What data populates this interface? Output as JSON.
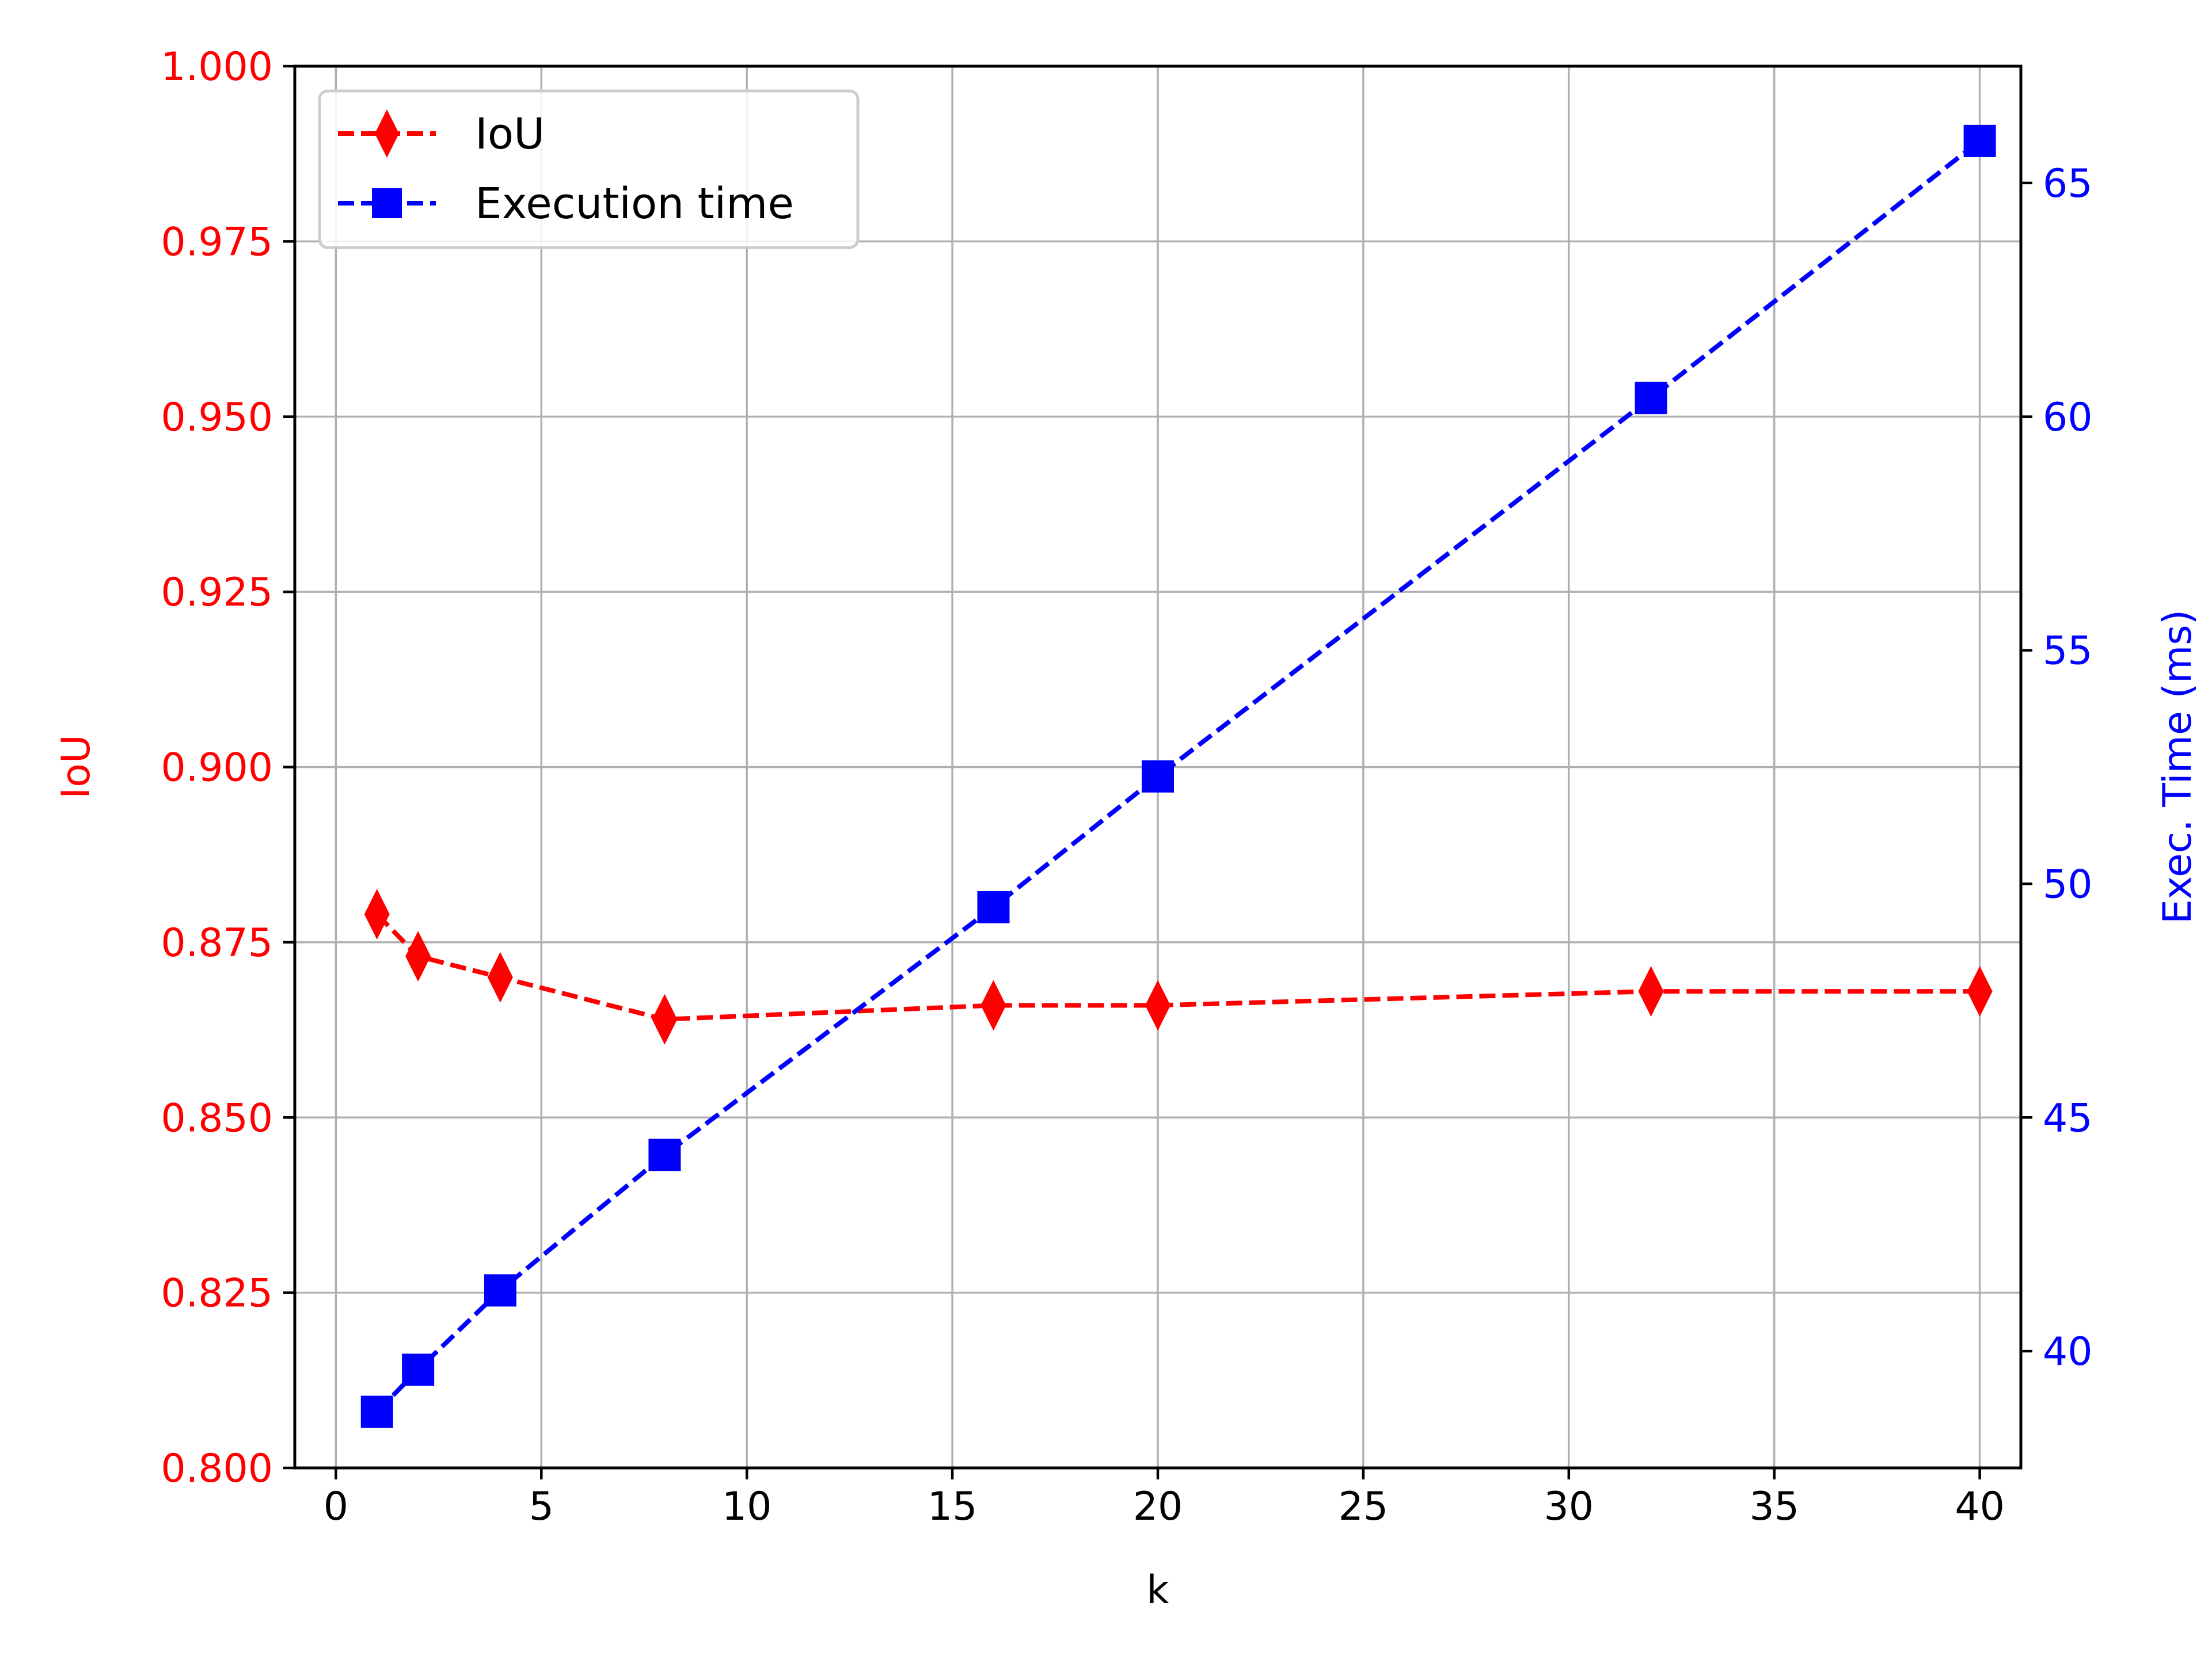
{
  "chart_data": {
    "type": "line",
    "x": [
      1,
      2,
      4,
      8,
      16,
      20,
      32,
      40
    ],
    "xlabel": "k",
    "xlim": [
      -1,
      41
    ],
    "xticks": [
      0,
      5,
      10,
      15,
      20,
      25,
      30,
      35,
      40
    ],
    "grid": true,
    "legend_position": "top-left",
    "series": [
      {
        "name": "IoU",
        "axis": "left",
        "color": "#ff0000",
        "marker": "diamond",
        "linestyle": "dashed",
        "values": [
          0.879,
          0.873,
          0.87,
          0.864,
          0.866,
          0.866,
          0.868,
          0.868
        ]
      },
      {
        "name": "Execution time",
        "axis": "right",
        "color": "#0000ff",
        "marker": "square",
        "linestyle": "dashed",
        "values": [
          38.7,
          39.6,
          41.3,
          44.2,
          49.5,
          52.3,
          60.4,
          65.9
        ]
      }
    ],
    "y_left": {
      "label": "IoU",
      "color": "#ff0000",
      "lim": [
        0.8,
        1.0
      ],
      "ticks": [
        "0.800",
        "0.825",
        "0.850",
        "0.875",
        "0.900",
        "0.925",
        "0.950",
        "0.975",
        "1.000"
      ]
    },
    "y_right": {
      "label": "Exec. Time (ms)",
      "color": "#0000ff",
      "lim": [
        37.5,
        67.5
      ],
      "ticks": [
        "40",
        "45",
        "50",
        "55",
        "60",
        "65"
      ]
    }
  }
}
